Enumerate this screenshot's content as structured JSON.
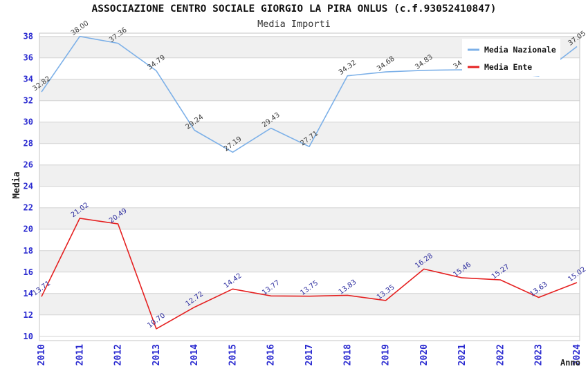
{
  "header": {
    "title": "ASSOCIAZIONE CENTRO SOCIALE GIORGIO LA PIRA ONLUS (c.f.93052410847)",
    "subtitle": "Media Importi"
  },
  "chart_data": {
    "type": "line",
    "x": [
      2010,
      2011,
      2012,
      2013,
      2014,
      2015,
      2016,
      2017,
      2018,
      2019,
      2020,
      2021,
      2022,
      2023,
      2024
    ],
    "series": [
      {
        "name": "Media Nazionale",
        "color": "#7cb0e8",
        "label_color": "#3a3a3a",
        "values": [
          32.82,
          38.0,
          37.36,
          34.79,
          29.24,
          27.19,
          29.43,
          27.71,
          34.32,
          34.68,
          34.83,
          34.88,
          34.6,
          34.3,
          37.05
        ]
      },
      {
        "name": "Media Ente",
        "color": "#e52020",
        "label_color": "#2b2b9e",
        "values": [
          13.71,
          21.02,
          20.49,
          10.7,
          12.72,
          14.42,
          13.77,
          13.75,
          13.83,
          13.35,
          16.28,
          15.46,
          15.27,
          13.63,
          15.02
        ]
      }
    ],
    "xlabel": "Anno",
    "ylabel": "Media",
    "ylim": [
      10,
      38
    ],
    "ytick_step": 2,
    "grid": true,
    "plot_bands": "alternating",
    "legend_position": "top-right"
  },
  "colors": {
    "background": "#ffffff",
    "axis_label": "#2a2ad0",
    "band": "#f0f0f0",
    "grid": "#d2d2d2",
    "border": "#c6c6c6",
    "axis_title": "#222222",
    "legend_text": "#111111"
  }
}
